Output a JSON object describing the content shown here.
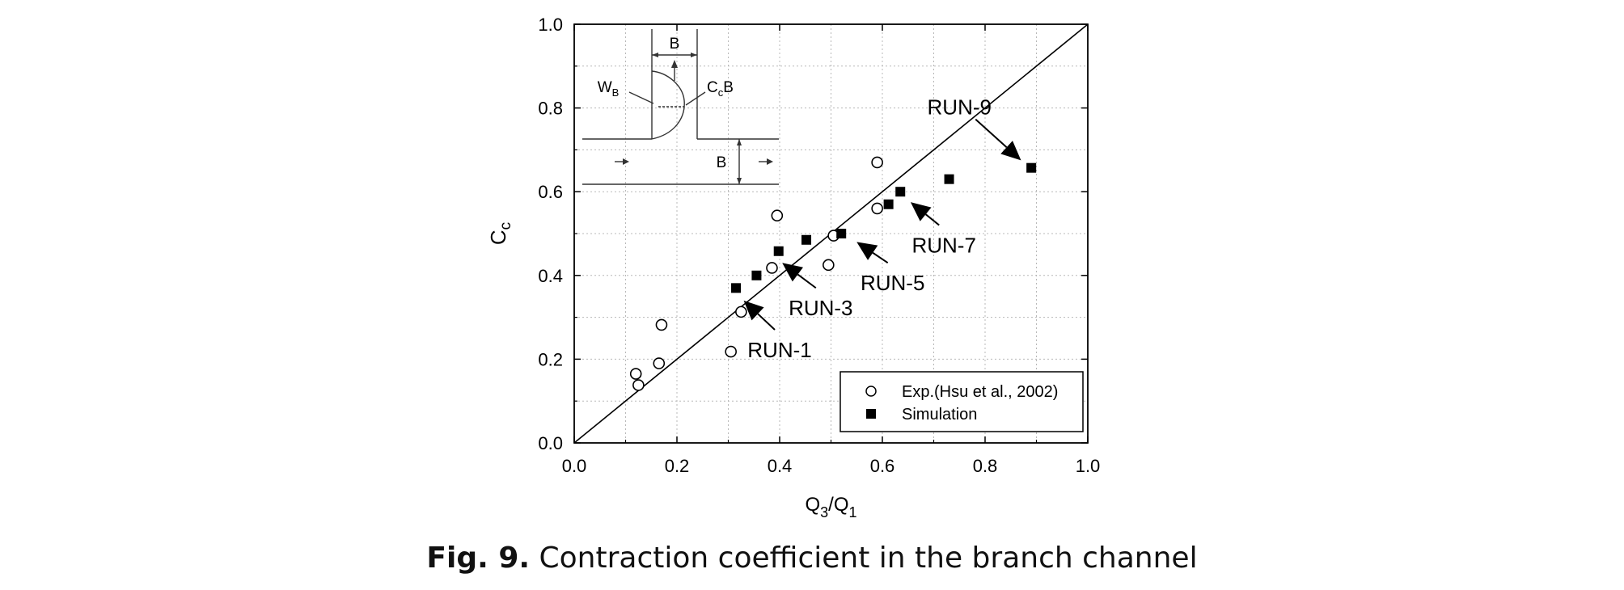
{
  "chart_data": {
    "type": "scatter",
    "xlabel": {
      "main": "Q",
      "sub1": "3",
      "sep": "/Q",
      "sub2": "1"
    },
    "ylabel": {
      "main": "C",
      "sub": "c"
    },
    "xlim": [
      0.0,
      1.0
    ],
    "ylim": [
      0.0,
      1.0
    ],
    "x_ticks": [
      "0.0",
      "0.2",
      "0.4",
      "0.6",
      "0.8",
      "1.0"
    ],
    "y_ticks": [
      "0.0",
      "0.2",
      "0.4",
      "0.6",
      "0.8",
      "1.0"
    ],
    "grid": true,
    "reference_line": {
      "from": [
        0.0,
        0.0
      ],
      "to": [
        1.0,
        1.0
      ]
    },
    "legend_position": "bottom-right",
    "series": [
      {
        "name": "Exp.(Hsu et al., 2002)",
        "marker": "open-circle",
        "points": [
          [
            0.12,
            0.165
          ],
          [
            0.125,
            0.138
          ],
          [
            0.165,
            0.19
          ],
          [
            0.17,
            0.282
          ],
          [
            0.305,
            0.218
          ],
          [
            0.325,
            0.313
          ],
          [
            0.385,
            0.418
          ],
          [
            0.395,
            0.543
          ],
          [
            0.495,
            0.425
          ],
          [
            0.505,
            0.495
          ],
          [
            0.59,
            0.67
          ],
          [
            0.59,
            0.56
          ]
        ]
      },
      {
        "name": "Simulation",
        "marker": "filled-square",
        "points": [
          [
            0.315,
            0.37
          ],
          [
            0.355,
            0.4
          ],
          [
            0.398,
            0.458
          ],
          [
            0.452,
            0.485
          ],
          [
            0.52,
            0.5
          ],
          [
            0.612,
            0.57
          ],
          [
            0.635,
            0.6
          ],
          [
            0.73,
            0.63
          ],
          [
            0.89,
            0.657
          ]
        ]
      }
    ],
    "annotations": [
      {
        "text": "RUN-1",
        "target": [
          0.33,
          0.34
        ],
        "label_at": [
          0.4,
          0.22
        ]
      },
      {
        "text": "RUN-3",
        "target": [
          0.405,
          0.43
        ],
        "label_at": [
          0.48,
          0.32
        ]
      },
      {
        "text": "RUN-5",
        "target": [
          0.55,
          0.48
        ],
        "label_at": [
          0.62,
          0.38
        ]
      },
      {
        "text": "RUN-7",
        "target": [
          0.655,
          0.575
        ],
        "label_at": [
          0.72,
          0.47
        ]
      },
      {
        "text": "RUN-9",
        "target": [
          0.87,
          0.675
        ],
        "label_at": [
          0.75,
          0.8
        ]
      }
    ],
    "inset_labels": {
      "top_width": "B",
      "right_width": "B",
      "wb_main": "W",
      "wb_sub": "B",
      "cc_main": "C",
      "cc_sub": "c",
      "cc_tail": "B"
    }
  },
  "caption": {
    "number": "Fig. 9.",
    "text": "Contraction coefficient in the branch channel"
  }
}
